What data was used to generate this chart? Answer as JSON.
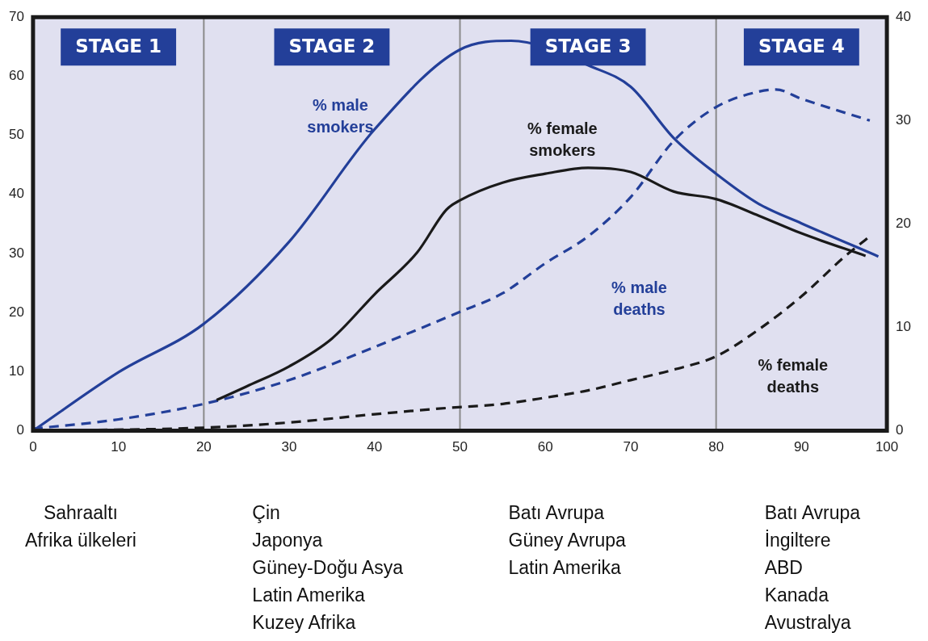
{
  "chart_data": {
    "type": "line",
    "xlim": [
      0,
      100
    ],
    "xticks": [
      0,
      10,
      20,
      30,
      40,
      50,
      60,
      70,
      80,
      90,
      100
    ],
    "ylim": [
      0,
      70
    ],
    "yticks": [
      0,
      10,
      20,
      30,
      40,
      50,
      60,
      70
    ],
    "y2lim": [
      0,
      40
    ],
    "y2ticks": [
      0,
      10,
      20,
      30,
      40
    ],
    "grid": false,
    "legend": false,
    "marker": "none",
    "series": [
      {
        "name": "% male smokers",
        "color": "#233f99",
        "line_style": "solid",
        "x": [
          0,
          10,
          20,
          30,
          40,
          50,
          56,
          65.6,
          70,
          75,
          80,
          85,
          90,
          99
        ],
        "values": [
          0,
          9.9,
          18.1,
          32,
          51,
          64.5,
          66,
          61.5,
          58.2,
          49.6,
          43.5,
          38.4,
          35.1,
          29.5
        ]
      },
      {
        "name": "% female smokers",
        "color": "#1a1a1a",
        "line_style": "solid",
        "x": [
          21.5,
          25,
          30,
          35,
          40,
          45,
          48.4,
          50,
          55,
          60,
          65,
          70,
          75,
          80,
          85,
          90,
          97.5
        ],
        "values": [
          5.2,
          7.5,
          10.9,
          15.6,
          23.1,
          30.2,
          37.4,
          39,
          42,
          43.5,
          44.5,
          43.8,
          40.5,
          39.2,
          36.4,
          33.4,
          29.6
        ]
      },
      {
        "name": "% male deaths",
        "color": "#233f99",
        "line_style": "dashed",
        "axis": "y2",
        "x": [
          0,
          10,
          20,
          30,
          40,
          50,
          55,
          60,
          65,
          70,
          75,
          80,
          85,
          87,
          90,
          98
        ],
        "values": [
          0.2,
          1.1,
          2.6,
          4.9,
          8.1,
          11.5,
          13.3,
          16.2,
          18.8,
          22.6,
          28,
          31.3,
          32.8,
          33,
          32.1,
          30
        ]
      },
      {
        "name": "% female deaths",
        "color": "#1a1a1a",
        "line_style": "dashed",
        "axis": "y2",
        "x": [
          0,
          20,
          30,
          40,
          48.4,
          55,
          60,
          65,
          70,
          75,
          80,
          85,
          90,
          95,
          97.7
        ],
        "values": [
          0,
          0.3,
          0.8,
          1.6,
          2.2,
          2.6,
          3.2,
          3.9,
          4.9,
          5.9,
          7.2,
          9.8,
          13,
          16.8,
          18.6
        ]
      }
    ],
    "ref_lines": [
      {
        "axis": "x",
        "value": 20,
        "color": "#8a8a8a"
      },
      {
        "axis": "x",
        "value": 50,
        "color": "#8a8a8a"
      },
      {
        "axis": "x",
        "value": 80,
        "color": "#8a8a8a"
      }
    ],
    "bands": [
      {
        "axis": "x",
        "from": 0,
        "to": 20,
        "label": "STAGE 1",
        "color": "#e0e0f0"
      },
      {
        "axis": "x",
        "from": 20,
        "to": 50,
        "label": "STAGE 2",
        "color": "#e0e0f0"
      },
      {
        "axis": "x",
        "from": 50,
        "to": 80,
        "label": "STAGE 3",
        "color": "#e0e0f0"
      },
      {
        "axis": "x",
        "from": 80,
        "to": 100,
        "label": "STAGE 4",
        "color": "#e0e0f0"
      }
    ],
    "annotations": [
      "Sahraaltı\nAfrika ülkeleri",
      "Çin\nJaponya\nGüney-Doğu Asya\nLatin Amerika\nKuzey Afrika",
      "Batı Avrupa\nGüney Avrupa\nLatin Amerika",
      "Batı Avrupa\nİngiltere\nABD\nKanada\nAvustralya"
    ]
  }
}
